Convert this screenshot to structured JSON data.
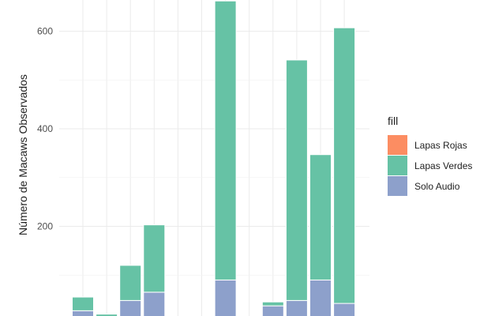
{
  "chart_data": {
    "type": "bar",
    "stacked": true,
    "ylabel": "Número de Macaws Observados",
    "yticks": [
      200,
      400,
      600
    ],
    "ylim": [
      0,
      660
    ],
    "grid": true,
    "legend": {
      "title": "fill",
      "placement": "right",
      "entries": [
        "Lapas Rojas",
        "Lapas Verdes",
        "Solo Audio"
      ]
    },
    "series": [
      {
        "name": "Lapas Rojas",
        "color": "#fc8d62",
        "values": [
          0,
          0,
          0,
          0,
          0,
          0,
          0,
          0,
          0,
          0,
          0,
          0
        ]
      },
      {
        "name": "Lapas Verdes",
        "color": "#66c2a5",
        "values": [
          28,
          8,
          72,
          138,
          0,
          0,
          572,
          5,
          8,
          493,
          257,
          565
        ]
      },
      {
        "name": "Solo Audio",
        "color": "#8da0cb",
        "values": [
          27,
          12,
          48,
          65,
          0,
          0,
          90,
          3,
          37,
          48,
          90,
          42
        ]
      }
    ]
  }
}
